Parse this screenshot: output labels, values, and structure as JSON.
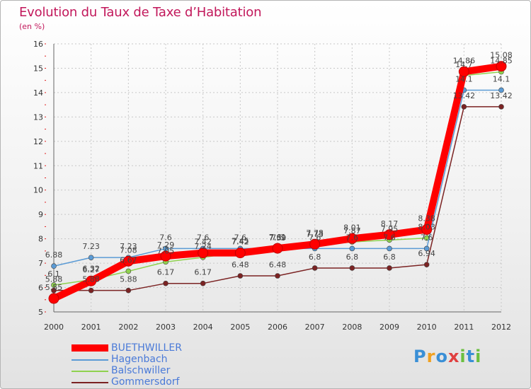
{
  "header": {
    "title": "Evolution du Taux de Taxe d’Habitation",
    "subtitle": "(en %)"
  },
  "branding": {
    "logo_text": "Proxiti"
  },
  "chart_data": {
    "type": "line",
    "ylim": [
      5,
      16
    ],
    "yticks": [
      5,
      6,
      7,
      8,
      9,
      10,
      11,
      12,
      13,
      14,
      15,
      16
    ],
    "categories": [
      "2000",
      "2001",
      "2002",
      "2003",
      "2004",
      "2005",
      "2006",
      "2007",
      "2008",
      "2009",
      "2010",
      "2011",
      "2012"
    ],
    "series": [
      {
        "name": "BUETHWILLER",
        "color": "#ff0000",
        "values": [
          5.55,
          6.27,
          7.08,
          7.29,
          7.42,
          7.42,
          7.61,
          7.78,
          8.01,
          8.17,
          8.38,
          14.86,
          15.08
        ],
        "labels": [
          "5.55",
          "6.27",
          "7.08",
          "7.29",
          "7.42",
          "7.42",
          "7.61",
          "7.78",
          "8.01",
          "8.17",
          "8.38",
          "14.86",
          "15.08"
        ]
      },
      {
        "name": "Hagenbach",
        "color": "#5b9bd5",
        "values": [
          6.88,
          7.23,
          7.23,
          7.6,
          7.6,
          7.6,
          7.6,
          7.6,
          7.6,
          7.6,
          7.6,
          14.1,
          14.1
        ],
        "labels": [
          "6.88",
          "7.23",
          "7.23",
          "7.6",
          "7.6",
          "7.6",
          "7.6",
          "7.6",
          "7.6",
          "7.6",
          "7.6",
          "14.1",
          "14.1"
        ]
      },
      {
        "name": "Balschwiller",
        "color": "#8fd14f",
        "values": [
          6.1,
          6.32,
          6.67,
          7.05,
          7.24,
          7.45,
          7.59,
          7.73,
          7.87,
          7.95,
          8.03,
          14.7,
          14.85
        ],
        "labels": [
          "6.1",
          "6.32",
          "6.67",
          "7.05",
          "7.24",
          "7.45",
          "7.59",
          "7.73",
          "7.87",
          "7.95",
          "8.03",
          "14.7",
          "14.85"
        ]
      },
      {
        "name": "Gommersdorf",
        "color": "#7b2323",
        "values": [
          5.88,
          5.88,
          5.88,
          6.17,
          6.17,
          6.48,
          6.48,
          6.8,
          6.8,
          6.8,
          6.94,
          13.42,
          13.42
        ],
        "labels": [
          "5.88",
          "5.88",
          "5.88",
          "6.17",
          "6.17",
          "6.48",
          "6.48",
          "6.8",
          "6.8",
          "6.8",
          "6.94",
          "13.42",
          "13.42"
        ]
      }
    ]
  }
}
